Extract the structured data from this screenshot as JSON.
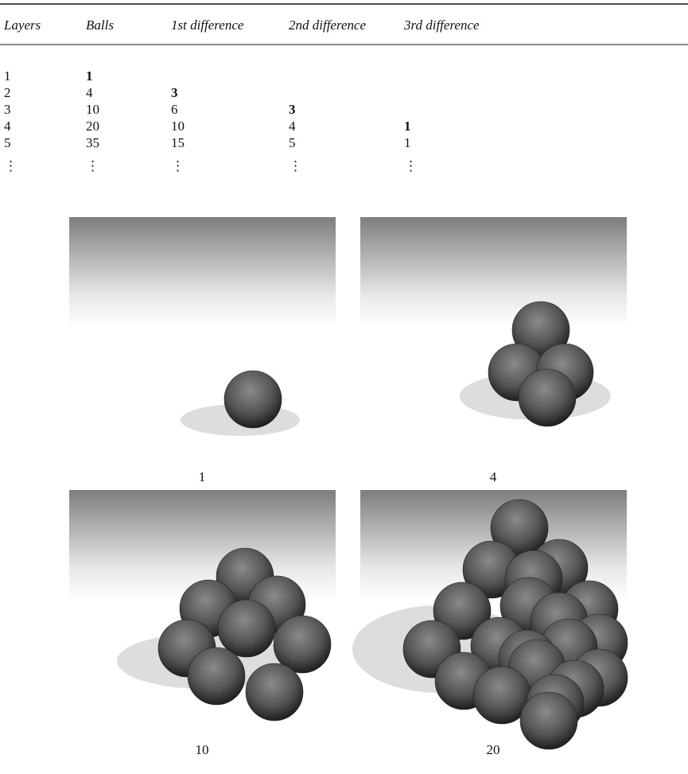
{
  "table": {
    "header": [
      "Layers",
      "Balls",
      "1st difference",
      "2nd difference",
      "3rd difference"
    ],
    "rows": [
      [
        "1",
        "1"
      ],
      [
        "2",
        "4",
        "3"
      ],
      [
        "3",
        "10",
        "6",
        "3"
      ],
      [
        "4",
        "20",
        "10",
        "4",
        "1"
      ],
      [
        "5",
        "35",
        "15",
        "5",
        "1"
      ],
      [
        "⋮",
        "⋮",
        "⋮",
        "⋮",
        "⋮"
      ]
    ],
    "bold_cells": [
      [
        0,
        1
      ],
      [
        1,
        2
      ],
      [
        2,
        3
      ],
      [
        3,
        4
      ]
    ]
  },
  "figures": [
    {
      "caption": "1"
    },
    {
      "caption": "4"
    },
    {
      "caption": "10"
    },
    {
      "caption": "20"
    }
  ]
}
